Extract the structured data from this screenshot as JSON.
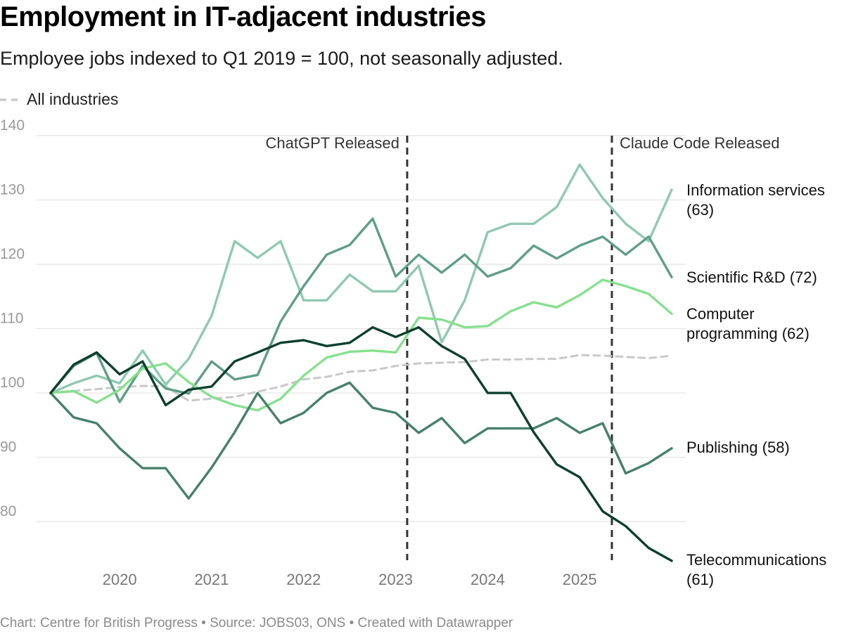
{
  "title": "Employment in IT-adjacent industries",
  "subtitle": "Employee jobs indexed to Q1 2019 = 100, not seasonally adjusted.",
  "legend": {
    "label": "All industries",
    "color": "#c8c8c8"
  },
  "footer": "Chart: Centre for British Progress • Source: JOBS03, ONS • Created with Datawrapper",
  "chart_data": {
    "type": "line",
    "title": "Employment in IT-adjacent industries",
    "ylabel": "",
    "xlabel": "",
    "ylim": [
      74,
      140
    ],
    "xlim": [
      2019.0,
      2025.75
    ],
    "yticks": [
      80,
      90,
      100,
      110,
      120,
      130,
      140
    ],
    "xticks": [
      {
        "value": 2019.75,
        "label": "2020"
      },
      {
        "value": 2020.75,
        "label": "2021"
      },
      {
        "value": 2021.75,
        "label": "2022"
      },
      {
        "value": 2022.75,
        "label": "2023"
      },
      {
        "value": 2023.75,
        "label": "2024"
      },
      {
        "value": 2024.75,
        "label": "2025"
      }
    ],
    "x": [
      2019.0,
      2019.25,
      2019.5,
      2019.75,
      2020.0,
      2020.25,
      2020.5,
      2020.75,
      2021.0,
      2021.25,
      2021.5,
      2021.75,
      2022.0,
      2022.25,
      2022.5,
      2022.75,
      2023.0,
      2023.25,
      2023.5,
      2023.75,
      2024.0,
      2024.25,
      2024.5,
      2024.75,
      2025.0,
      2025.25,
      2025.5,
      2025.75
    ],
    "annotations": [
      {
        "x": 2022.875,
        "label": "ChatGPT Released",
        "side": "left"
      },
      {
        "x": 2025.1,
        "label": "Claude Code Released",
        "side": "right"
      }
    ],
    "series": [
      {
        "name": "All industries",
        "label": "",
        "color": "#c8c8c8",
        "dashed": true,
        "values": [
          100,
          100.3,
          100.6,
          100.9,
          101.1,
          101.0,
          98.8,
          99.1,
          99.4,
          100.2,
          101.0,
          102.1,
          102.5,
          103.3,
          103.5,
          104.2,
          104.6,
          104.7,
          104.8,
          105.2,
          105.2,
          105.3,
          105.3,
          105.9,
          105.8,
          105.6,
          105.4,
          105.8
        ]
      },
      {
        "name": "Information services",
        "label": [
          "Information services",
          "(63)"
        ],
        "color": "#8fc9b1",
        "values": [
          100,
          101.5,
          102.7,
          101.5,
          106.6,
          101.3,
          105.3,
          112.0,
          123.6,
          121.0,
          123.6,
          114.4,
          114.4,
          118.4,
          115.8,
          115.8,
          119.8,
          107.9,
          114.4,
          125.0,
          126.3,
          126.3,
          128.9,
          135.5,
          130.3,
          126.3,
          123.6,
          131.6
        ]
      },
      {
        "name": "Scientific R&D",
        "label": [
          "Scientific R&D (72)"
        ],
        "color": "#5e9e86",
        "values": [
          100,
          104.2,
          106.2,
          98.6,
          104.2,
          100.7,
          99.9,
          104.9,
          102.1,
          102.8,
          111.1,
          116.6,
          121.5,
          123.0,
          127.1,
          118.1,
          121.5,
          118.7,
          121.5,
          118.1,
          119.4,
          122.9,
          120.9,
          122.9,
          124.3,
          121.5,
          124.3,
          118.0
        ]
      },
      {
        "name": "Computer programming",
        "label": [
          "Computer",
          "programming (62)"
        ],
        "color": "#86e08e",
        "values": [
          100,
          100.3,
          98.5,
          100.5,
          103.8,
          104.6,
          101.7,
          99.4,
          98.1,
          97.3,
          99.1,
          102.7,
          105.5,
          106.4,
          106.6,
          106.3,
          111.7,
          111.4,
          110.2,
          110.4,
          112.7,
          114.1,
          113.3,
          115.2,
          117.6,
          116.6,
          115.4,
          112.3
        ]
      },
      {
        "name": "Publishing",
        "label": [
          "Publishing (58)"
        ],
        "color": "#46806a",
        "values": [
          100,
          96.2,
          95.3,
          91.4,
          88.3,
          88.3,
          83.6,
          88.4,
          93.9,
          100.0,
          95.3,
          96.9,
          100.0,
          101.6,
          97.7,
          96.9,
          93.8,
          96.1,
          92.2,
          94.5,
          94.5,
          94.5,
          96.1,
          93.8,
          95.3,
          87.5,
          89.1,
          91.4
        ]
      },
      {
        "name": "Telecommunications",
        "label": [
          "Telecommunications",
          "(61)"
        ],
        "color": "#0d3f2e",
        "values": [
          100,
          104.4,
          106.3,
          102.9,
          104.9,
          98.1,
          100.5,
          101.0,
          104.9,
          106.3,
          107.8,
          108.2,
          107.3,
          107.8,
          110.2,
          108.7,
          110.2,
          107.3,
          105.3,
          100.0,
          100.0,
          93.9,
          88.9,
          86.9,
          81.6,
          79.3,
          75.9,
          73.9
        ]
      }
    ]
  }
}
